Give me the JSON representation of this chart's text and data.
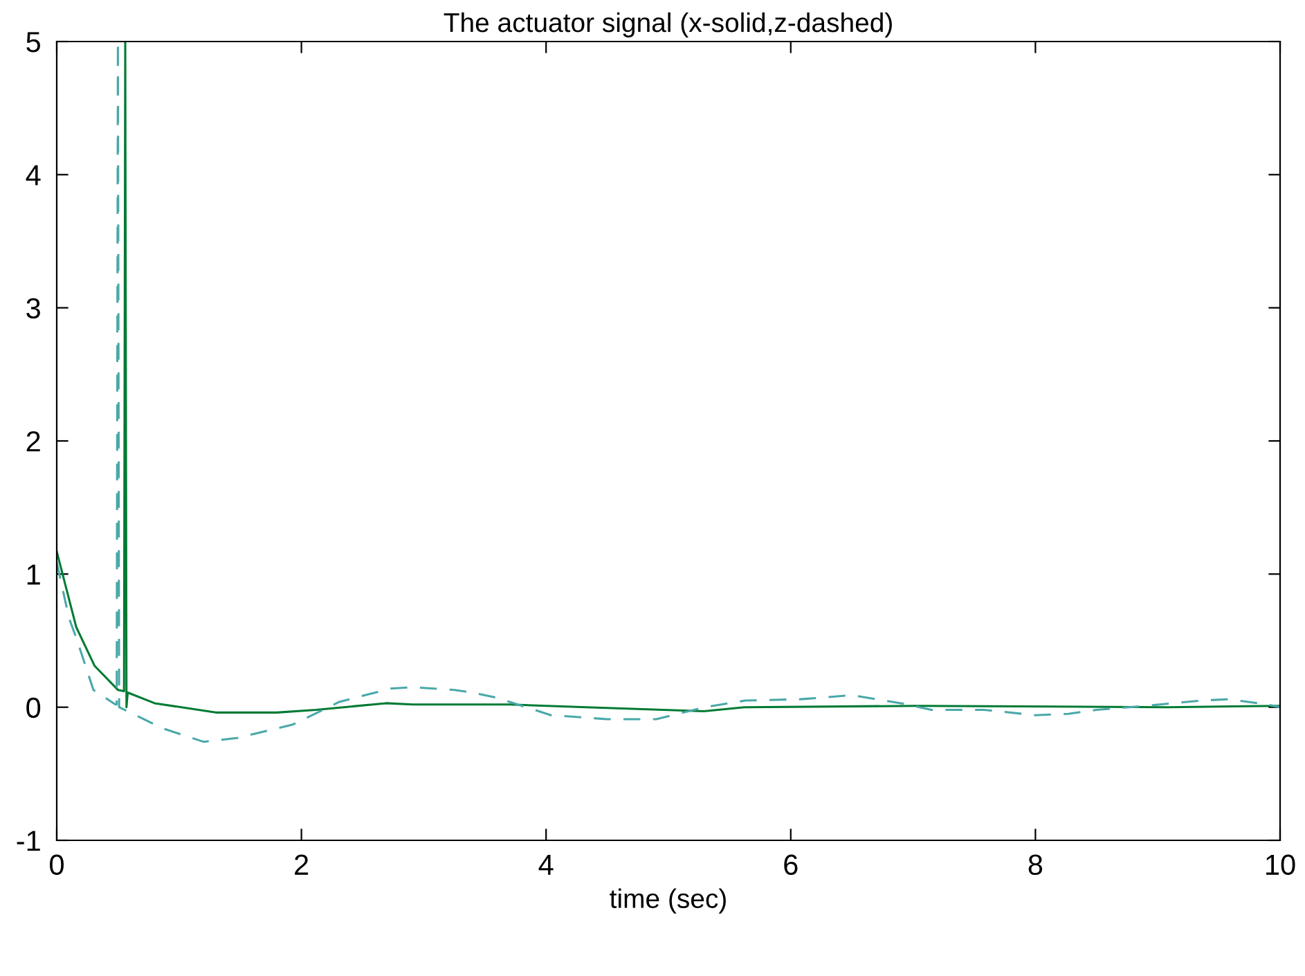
{
  "chart_data": {
    "type": "line",
    "title": "The actuator signal (x-solid,z-dashed)",
    "xlabel": "time (sec)",
    "xlim": [
      0,
      10
    ],
    "ylim": [
      -1,
      5
    ],
    "xticks": [
      0,
      2,
      4,
      6,
      8,
      10
    ],
    "yticks": [
      -1,
      0,
      1,
      2,
      3,
      4,
      5
    ],
    "grid": false,
    "marker": "none",
    "series": [
      {
        "color": "#007a33",
        "line_style": "solid",
        "x": [
          0,
          0.16,
          0.31,
          0.5,
          0.55,
          0.56,
          0.57,
          0.58,
          0.8,
          1.3,
          1.8,
          2.12,
          2.69,
          2.91,
          3.7,
          4.33,
          5.29,
          5.62,
          7.03,
          9.08,
          10
        ],
        "values": [
          1.17,
          0.6,
          0.31,
          0.13,
          0.12,
          5,
          0,
          0.11,
          0.03,
          -0.04,
          -0.04,
          -0.02,
          0.03,
          0.02,
          0.02,
          0,
          -0.03,
          0,
          0.01,
          0,
          0.01
        ]
      },
      {
        "color": "#4aa8a8",
        "line_style": "dashed",
        "x": [
          0,
          0.1,
          0.16,
          0.3,
          0.48,
          0.49,
          0.5,
          0.51,
          0.87,
          1.2,
          1.48,
          1.93,
          2.31,
          2.73,
          2.91,
          3.25,
          3.4,
          3.6,
          4.04,
          4.5,
          4.9,
          5.3,
          5.63,
          6.08,
          6.5,
          6.9,
          7.15,
          7.58,
          8.0,
          8.27,
          8.5,
          8.9,
          9.36,
          9.58,
          9.9,
          10
        ],
        "values": [
          1.09,
          0.67,
          0.52,
          0.13,
          0.02,
          0.02,
          5,
          0.0,
          -0.16,
          -0.26,
          -0.23,
          -0.13,
          0.04,
          0.14,
          0.15,
          0.13,
          0.11,
          0.07,
          -0.06,
          -0.09,
          -0.09,
          0,
          0.05,
          0.06,
          0.09,
          0.03,
          -0.02,
          -0.02,
          -0.06,
          -0.05,
          -0.02,
          0.01,
          0.05,
          0.06,
          0.02,
          0
        ]
      }
    ]
  }
}
